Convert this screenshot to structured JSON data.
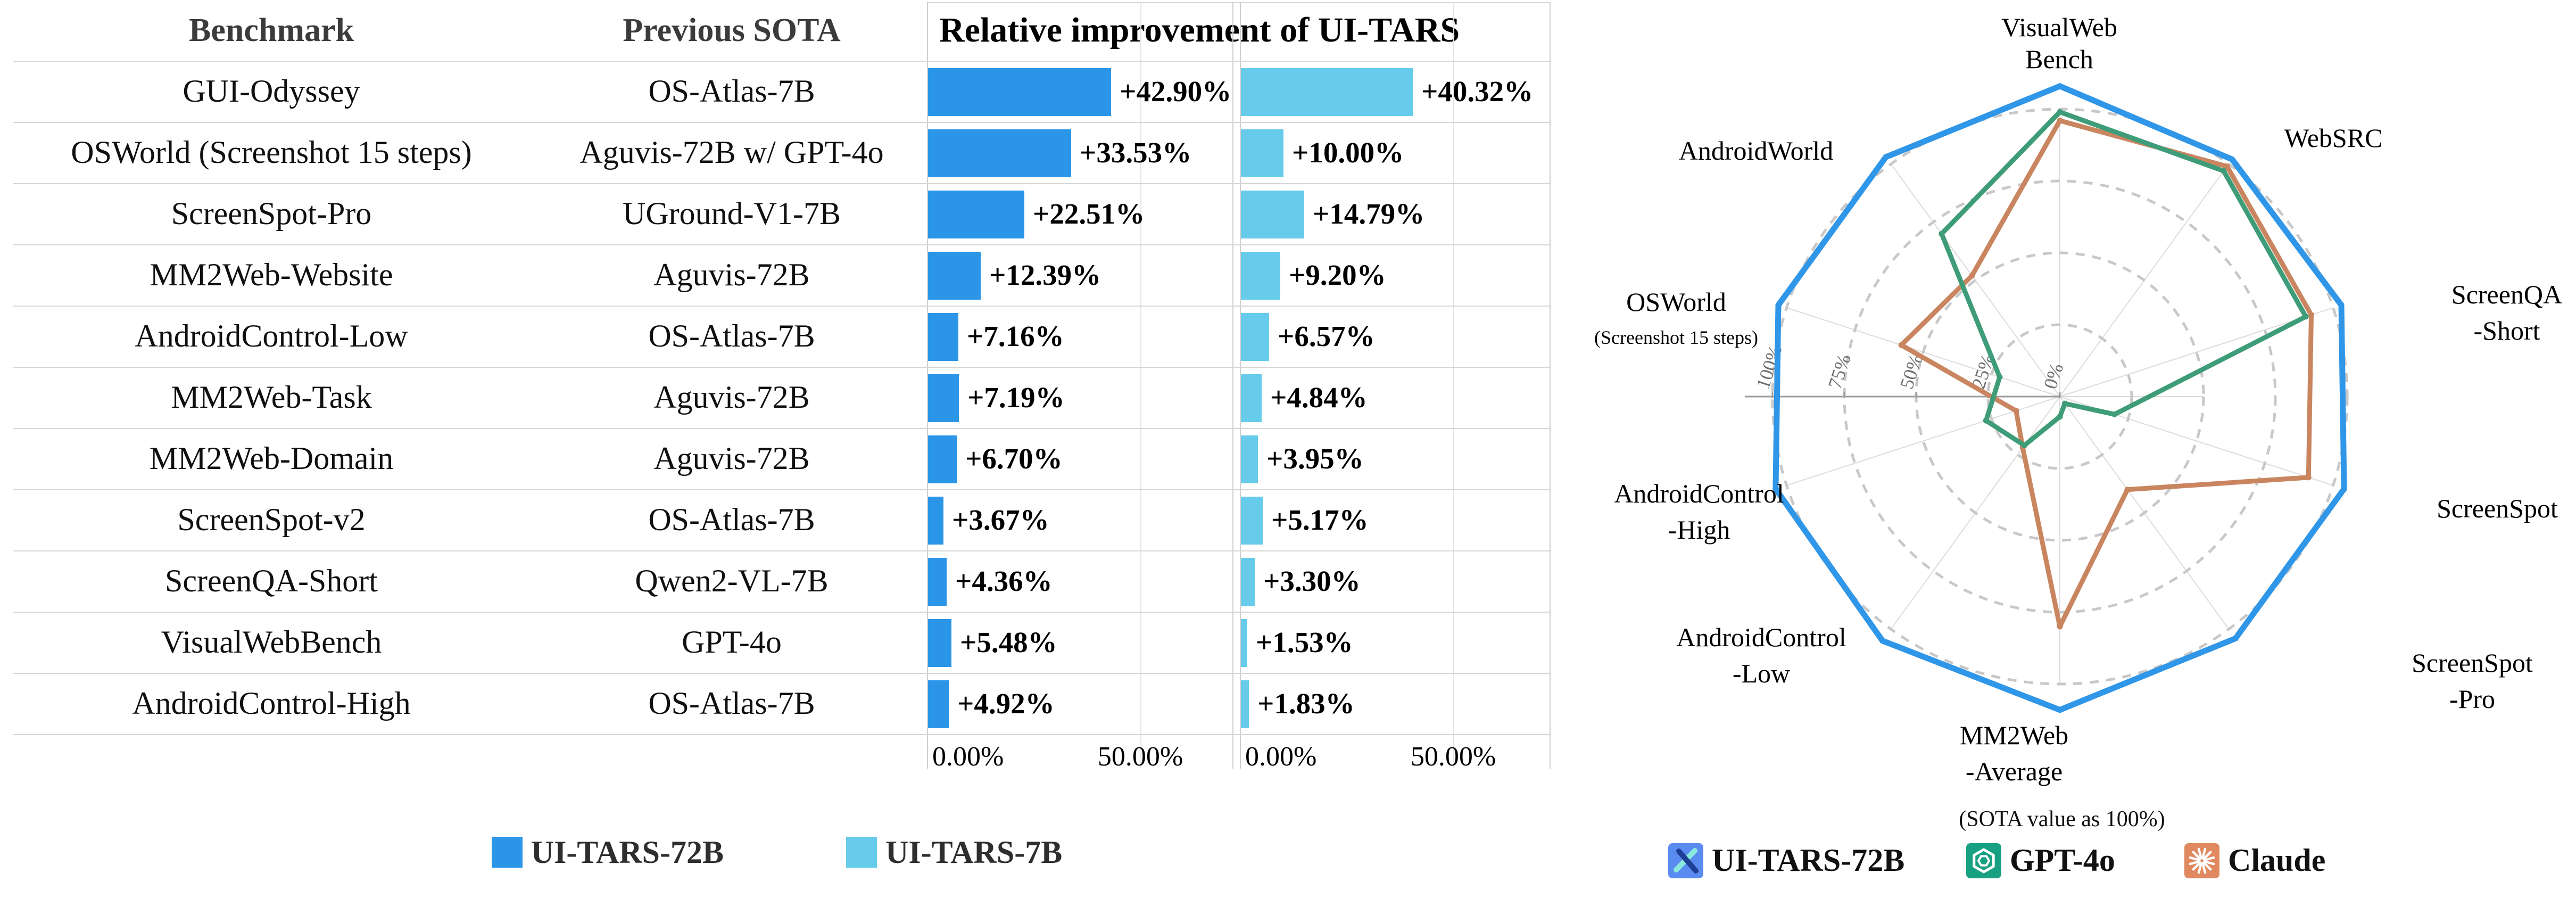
{
  "left_chart": {
    "col_headers": {
      "benchmark": "Benchmark",
      "previous_sota": "Previous SOTA",
      "improvement_header": "Relative improvement of UI-TARS"
    },
    "rows": [
      {
        "benchmark": "GUI-Odyssey",
        "previous_sota": "OS-Atlas-7B",
        "label_72b": "+42.90%",
        "label_7b": "+40.32%",
        "value_72b": 42.9,
        "value_7b": 40.32
      },
      {
        "benchmark": "OSWorld (Screenshot 15 steps)",
        "previous_sota": "Aguvis-72B w/ GPT-4o",
        "label_72b": "+33.53%",
        "label_7b": "+10.00%",
        "value_72b": 33.53,
        "value_7b": 10.0
      },
      {
        "benchmark": "ScreenSpot-Pro",
        "previous_sota": "UGround-V1-7B",
        "label_72b": "+22.51%",
        "label_7b": "+14.79%",
        "value_72b": 22.51,
        "value_7b": 14.79
      },
      {
        "benchmark": "MM2Web-Website",
        "previous_sota": "Aguvis-72B",
        "label_72b": "+12.39%",
        "label_7b": "+9.20%",
        "value_72b": 12.39,
        "value_7b": 9.2
      },
      {
        "benchmark": "AndroidControl-Low",
        "previous_sota": "OS-Atlas-7B",
        "label_72b": "+7.16%",
        "label_7b": "+6.57%",
        "value_72b": 7.16,
        "value_7b": 6.57
      },
      {
        "benchmark": "MM2Web-Task",
        "previous_sota": "Aguvis-72B",
        "label_72b": "+7.19%",
        "label_7b": "+4.84%",
        "value_72b": 7.19,
        "value_7b": 4.84
      },
      {
        "benchmark": "MM2Web-Domain",
        "previous_sota": "Aguvis-72B",
        "label_72b": "+6.70%",
        "label_7b": "+3.95%",
        "value_72b": 6.7,
        "value_7b": 3.95
      },
      {
        "benchmark": "ScreenSpot-v2",
        "previous_sota": "OS-Atlas-7B",
        "label_72b": "+3.67%",
        "label_7b": "+5.17%",
        "value_72b": 3.67,
        "value_7b": 5.17
      },
      {
        "benchmark": "ScreenQA-Short",
        "previous_sota": "Qwen2-VL-7B",
        "label_72b": "+4.36%",
        "label_7b": "+3.30%",
        "value_72b": 4.36,
        "value_7b": 3.3
      },
      {
        "benchmark": "VisualWebBench",
        "previous_sota": "GPT-4o",
        "label_72b": "+5.48%",
        "label_7b": "+1.53%",
        "value_72b": 5.48,
        "value_7b": 1.53
      },
      {
        "benchmark": "AndroidControl-High",
        "previous_sota": "OS-Atlas-7B",
        "label_72b": "+4.92%",
        "label_7b": "+1.83%",
        "value_72b": 4.92,
        "value_7b": 1.83
      }
    ],
    "axis_ticks": [
      "0.00%",
      "50.00%"
    ],
    "legend": [
      {
        "label": "UI-TARS-72B",
        "color": "#2b96e8"
      },
      {
        "label": "UI-TARS-7B",
        "color": "#67cbeb"
      }
    ]
  },
  "radar_chart": {
    "caption": "(SOTA value as 100%)",
    "radial_ticks": [
      "100%",
      "75%",
      "50%",
      "25%",
      "0%"
    ],
    "axes": [
      {
        "label": [
          "VisualWeb",
          "Bench"
        ]
      },
      {
        "label": [
          "WebSRC"
        ]
      },
      {
        "label": [
          "ScreenQA",
          "-Short"
        ]
      },
      {
        "label": [
          "ScreenSpot"
        ]
      },
      {
        "label": [
          "ScreenSpot",
          "-Pro"
        ]
      },
      {
        "label": [
          "MM2Web",
          "-Average"
        ]
      },
      {
        "label": [
          "AndroidControl",
          "-Low"
        ]
      },
      {
        "label": [
          "AndroidControl",
          "-High"
        ]
      },
      {
        "label": [
          "OSWorld"
        ],
        "sublabel": "(Screenshot 15 steps)"
      },
      {
        "label": [
          "AndroidWorld"
        ]
      }
    ],
    "series": [
      {
        "name": "UI-TARS-72B",
        "color": "#2f96e8",
        "icon": "ui-tars",
        "icon_bg": "#5a8bf0",
        "values": [
          108,
          102,
          103,
          104,
          104,
          109,
          105,
          104,
          103,
          103
        ]
      },
      {
        "name": "GPT-4o",
        "color": "#3e9c78",
        "icon": "openai",
        "icon_bg": "#17a081",
        "values": [
          99,
          97,
          90,
          20,
          3,
          7,
          21,
          27,
          22,
          70
        ]
      },
      {
        "name": "Claude",
        "color": "#c9855f",
        "icon": "claude",
        "icon_bg": "#e0885f",
        "values": [
          96,
          99,
          92,
          91,
          40,
          80,
          22,
          16,
          58,
          52
        ]
      }
    ]
  },
  "chart_data": [
    {
      "type": "bar",
      "title": "Relative improvement of UI-TARS",
      "orientation": "horizontal",
      "categories": [
        "GUI-Odyssey",
        "OSWorld (Screenshot 15 steps)",
        "ScreenSpot-Pro",
        "MM2Web-Website",
        "AndroidControl-Low",
        "MM2Web-Task",
        "MM2Web-Domain",
        "ScreenSpot-v2",
        "ScreenQA-Short",
        "VisualWebBench",
        "AndroidControl-High"
      ],
      "previous_sota": [
        "OS-Atlas-7B",
        "Aguvis-72B w/ GPT-4o",
        "UGround-V1-7B",
        "Aguvis-72B",
        "OS-Atlas-7B",
        "Aguvis-72B",
        "Aguvis-72B",
        "OS-Atlas-7B",
        "Qwen2-VL-7B",
        "GPT-4o",
        "OS-Atlas-7B"
      ],
      "series": [
        {
          "name": "UI-TARS-72B",
          "values": [
            42.9,
            33.53,
            22.51,
            12.39,
            7.16,
            7.19,
            6.7,
            3.67,
            4.36,
            5.48,
            4.92
          ]
        },
        {
          "name": "UI-TARS-7B",
          "values": [
            40.32,
            10.0,
            14.79,
            9.2,
            6.57,
            4.84,
            3.95,
            5.17,
            3.3,
            1.53,
            1.83
          ]
        }
      ],
      "xlabel": "",
      "ylabel": "",
      "xlim": [
        0,
        71.5
      ],
      "x_tick_labels": [
        "0.00%",
        "50.00%"
      ],
      "grid": true,
      "legend_position": "bottom"
    },
    {
      "type": "radar",
      "title": "(SOTA value as 100%)",
      "categories": [
        "VisualWebBench",
        "WebSRC",
        "ScreenQA-Short",
        "ScreenSpot",
        "ScreenSpot-Pro",
        "MM2Web-Average",
        "AndroidControl-Low",
        "AndroidControl-High",
        "OSWorld (Screenshot 15 steps)",
        "AndroidWorld"
      ],
      "series": [
        {
          "name": "UI-TARS-72B",
          "values": [
            108,
            102,
            103,
            104,
            104,
            109,
            105,
            104,
            103,
            103
          ]
        },
        {
          "name": "GPT-4o",
          "values": [
            99,
            97,
            90,
            20,
            3,
            7,
            21,
            27,
            22,
            70
          ]
        },
        {
          "name": "Claude",
          "values": [
            96,
            99,
            92,
            91,
            40,
            80,
            22,
            16,
            58,
            52
          ]
        }
      ],
      "rlim": [
        0,
        100
      ],
      "radial_tick_labels": [
        "0%",
        "25%",
        "50%",
        "75%",
        "100%"
      ],
      "grid": "dashed-circles",
      "legend_position": "bottom"
    }
  ]
}
